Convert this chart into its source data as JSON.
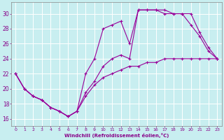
{
  "title": "",
  "xlabel": "Windchill (Refroidissement éolien,°C)",
  "ylabel": "",
  "bg_color": "#c8eef0",
  "line_color": "#990099",
  "grid_color": "#ffffff",
  "xlim": [
    -0.5,
    23.5
  ],
  "ylim": [
    15.0,
    31.5
  ],
  "xticks": [
    0,
    1,
    2,
    3,
    4,
    5,
    6,
    7,
    8,
    9,
    10,
    11,
    12,
    13,
    14,
    15,
    16,
    17,
    18,
    19,
    20,
    21,
    22,
    23
  ],
  "yticks": [
    16,
    18,
    20,
    22,
    24,
    26,
    28,
    30
  ],
  "line1_x": [
    0,
    1,
    2,
    3,
    4,
    5,
    6,
    7,
    8,
    9,
    10,
    11,
    12,
    13,
    14,
    15,
    16,
    17,
    18,
    19,
    20,
    21,
    22,
    23
  ],
  "line1_y": [
    22,
    20,
    19,
    18.5,
    17.5,
    17,
    16.3,
    17,
    19,
    20.5,
    21.5,
    22,
    22.5,
    23,
    23,
    23.5,
    23.5,
    24,
    24,
    24,
    24,
    24,
    24,
    24
  ],
  "line2_x": [
    0,
    1,
    2,
    3,
    4,
    5,
    6,
    7,
    8,
    9,
    10,
    11,
    12,
    13,
    14,
    15,
    16,
    17,
    18,
    19,
    20,
    21,
    22,
    23
  ],
  "line2_y": [
    22,
    20,
    19,
    18.5,
    17.5,
    17,
    16.3,
    17,
    22,
    24,
    28,
    28.5,
    29,
    26,
    30.5,
    30.5,
    30.5,
    30,
    30,
    30,
    28.5,
    27,
    25,
    24
  ],
  "line3_x": [
    0,
    1,
    2,
    3,
    4,
    5,
    6,
    7,
    8,
    9,
    10,
    11,
    12,
    13,
    14,
    15,
    16,
    17,
    18,
    19,
    20,
    21,
    22,
    23
  ],
  "line3_y": [
    22,
    20,
    19,
    18.5,
    17.5,
    17,
    16.3,
    17,
    19.5,
    21,
    23,
    24,
    24.5,
    24,
    30.5,
    30.5,
    30.5,
    30.5,
    30,
    30,
    30,
    27.5,
    25.5,
    24
  ]
}
